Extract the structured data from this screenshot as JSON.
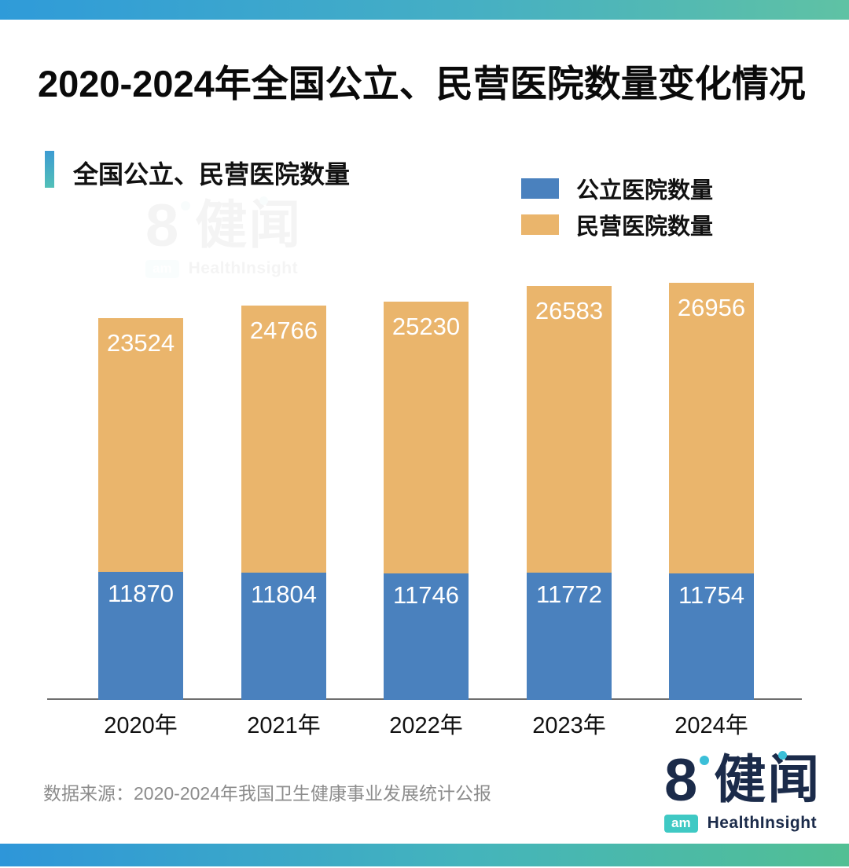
{
  "page": {
    "title": "2020-2024年全国公立、民营医院数量变化情况",
    "section_title": "全国公立、民营医院数量",
    "source": "数据来源：2020-2024年我国卫生健康事业发展统计公报"
  },
  "legend": {
    "items": [
      {
        "label": "公立医院数量",
        "color": "#4A81BE"
      },
      {
        "label": "民营医院数量",
        "color": "#EAB56C"
      }
    ]
  },
  "brand": {
    "logo_number": "8",
    "logo_cn": "健闻",
    "logo_am": "am",
    "logo_en": "HealthInsight"
  },
  "colors": {
    "public_blue": "#4A81BE",
    "private_orange": "#EAB56C",
    "band_gradient_left": "#2F9BD9",
    "band_gradient_right": "#5FC2A4",
    "brand_navy": "#1B2B4A",
    "brand_teal": "#3BBFD8",
    "axis_gray": "#6f6f6f",
    "source_gray": "#8c8c8c"
  },
  "chart_data": {
    "type": "bar",
    "stacked": true,
    "title": "全国公立、民营医院数量",
    "categories": [
      "2020年",
      "2021年",
      "2022年",
      "2023年",
      "2024年"
    ],
    "series": [
      {
        "name": "公立医院数量",
        "color": "#4A81BE",
        "values": [
          11870,
          11804,
          11746,
          11772,
          11754
        ]
      },
      {
        "name": "民营医院数量",
        "color": "#EAB56C",
        "values": [
          23524,
          24766,
          25230,
          26583,
          26956
        ]
      }
    ],
    "totals": [
      35394,
      36570,
      36976,
      38355,
      38710
    ],
    "xlabel": "",
    "ylabel": "",
    "ylim": [
      0,
      40000
    ],
    "grid": false,
    "legend_position": "top-right",
    "value_labels": "inside-top"
  }
}
